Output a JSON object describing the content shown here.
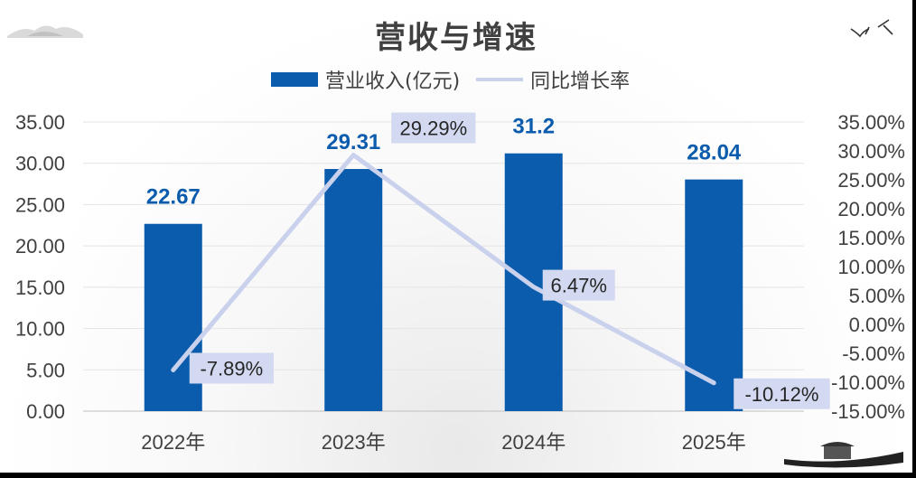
{
  "chart_data": {
    "type": "bar+line",
    "title": "营收与增速",
    "categories": [
      "2022年",
      "2023年",
      "2024年",
      "2025年"
    ],
    "series": [
      {
        "name": "营业收入(亿元)",
        "type": "bar",
        "axis": "left",
        "color": "#0b5cad",
        "values": [
          22.67,
          29.31,
          31.2,
          28.04
        ],
        "labels": [
          "22.67",
          "29.31",
          "31.2",
          "28.04"
        ]
      },
      {
        "name": "同比增长率",
        "type": "line",
        "axis": "right",
        "color": "#c9d1ec",
        "values": [
          -7.89,
          29.29,
          6.47,
          -10.12
        ],
        "labels": [
          "-7.89%",
          "29.29%",
          "6.47%",
          "-10.12%"
        ]
      }
    ],
    "y_left": {
      "min": 0,
      "max": 35,
      "ticks": [
        "0.00",
        "5.00",
        "10.00",
        "15.00",
        "20.00",
        "25.00",
        "30.00",
        "35.00"
      ]
    },
    "y_right": {
      "min": -15,
      "max": 35,
      "ticks": [
        "-15.00%",
        "-10.00%",
        "-5.00%",
        "0.00%",
        "5.00%",
        "10.00%",
        "15.00%",
        "20.00%",
        "25.00%",
        "30.00%",
        "35.00%"
      ]
    },
    "legend_position": "top-center"
  }
}
